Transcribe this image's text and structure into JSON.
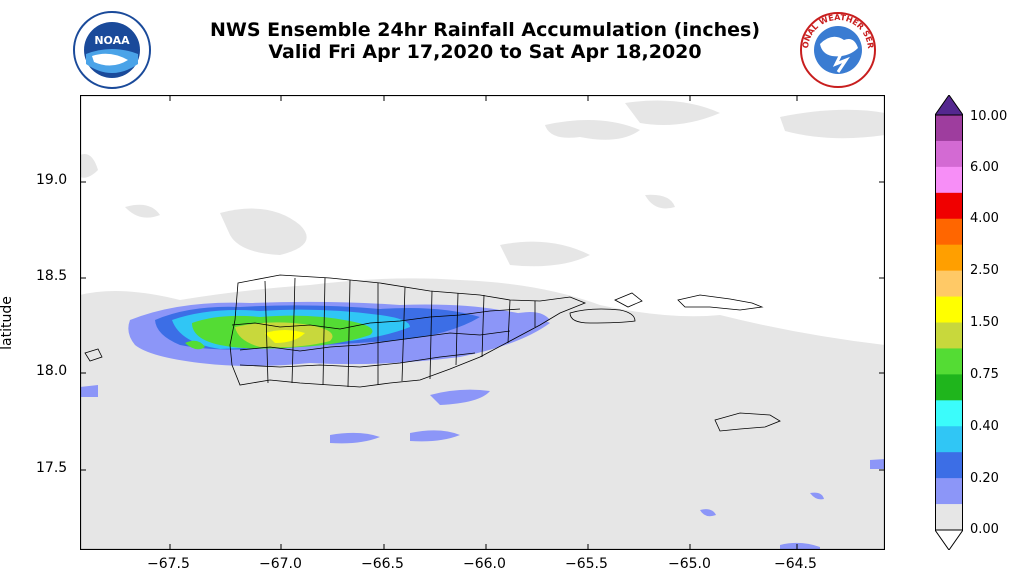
{
  "title_line1": "NWS Ensemble 24hr Rainfall Accumulation (inches)",
  "title_line2": "Valid Fri Apr 17,2020 to Sat Apr 18,2020",
  "noaa_logo_text": "NOAA",
  "nws_logo_text": "NATIONAL WEATHER SERVICE",
  "y_axis_label": "latitude",
  "y_ticks": [
    "19.0",
    "18.5",
    "18.0",
    "17.5"
  ],
  "x_ticks": [
    "−67.5",
    "−67.0",
    "−66.5",
    "−66.0",
    "−65.5",
    "−65.0",
    "−64.5"
  ],
  "colorbar": {
    "labels": [
      "10.00",
      "6.00",
      "4.00",
      "2.50",
      "1.50",
      "0.75",
      "0.40",
      "0.20",
      "0.00"
    ],
    "colors": [
      "#54278f",
      "#9e3d9e",
      "#d36ad3",
      "#f78ef7",
      "#f00000",
      "#ff6600",
      "#ff9f00",
      "#ffc966",
      "#ffff00",
      "#c8d83c",
      "#54dc34",
      "#1fb51c",
      "#3bfcfb",
      "#30c6f5",
      "#3c6ee6",
      "#8c96f8",
      "#e6e6e6"
    ]
  },
  "colors": {
    "land_outline": "#000000",
    "trace_gray": "#e6e6e6",
    "light_purple": "#8c96f8",
    "blue": "#3c6ee6",
    "cyan": "#30c6f5",
    "green": "#54dc34",
    "yellow_green": "#c8d83c",
    "yellow": "#ffff00"
  }
}
